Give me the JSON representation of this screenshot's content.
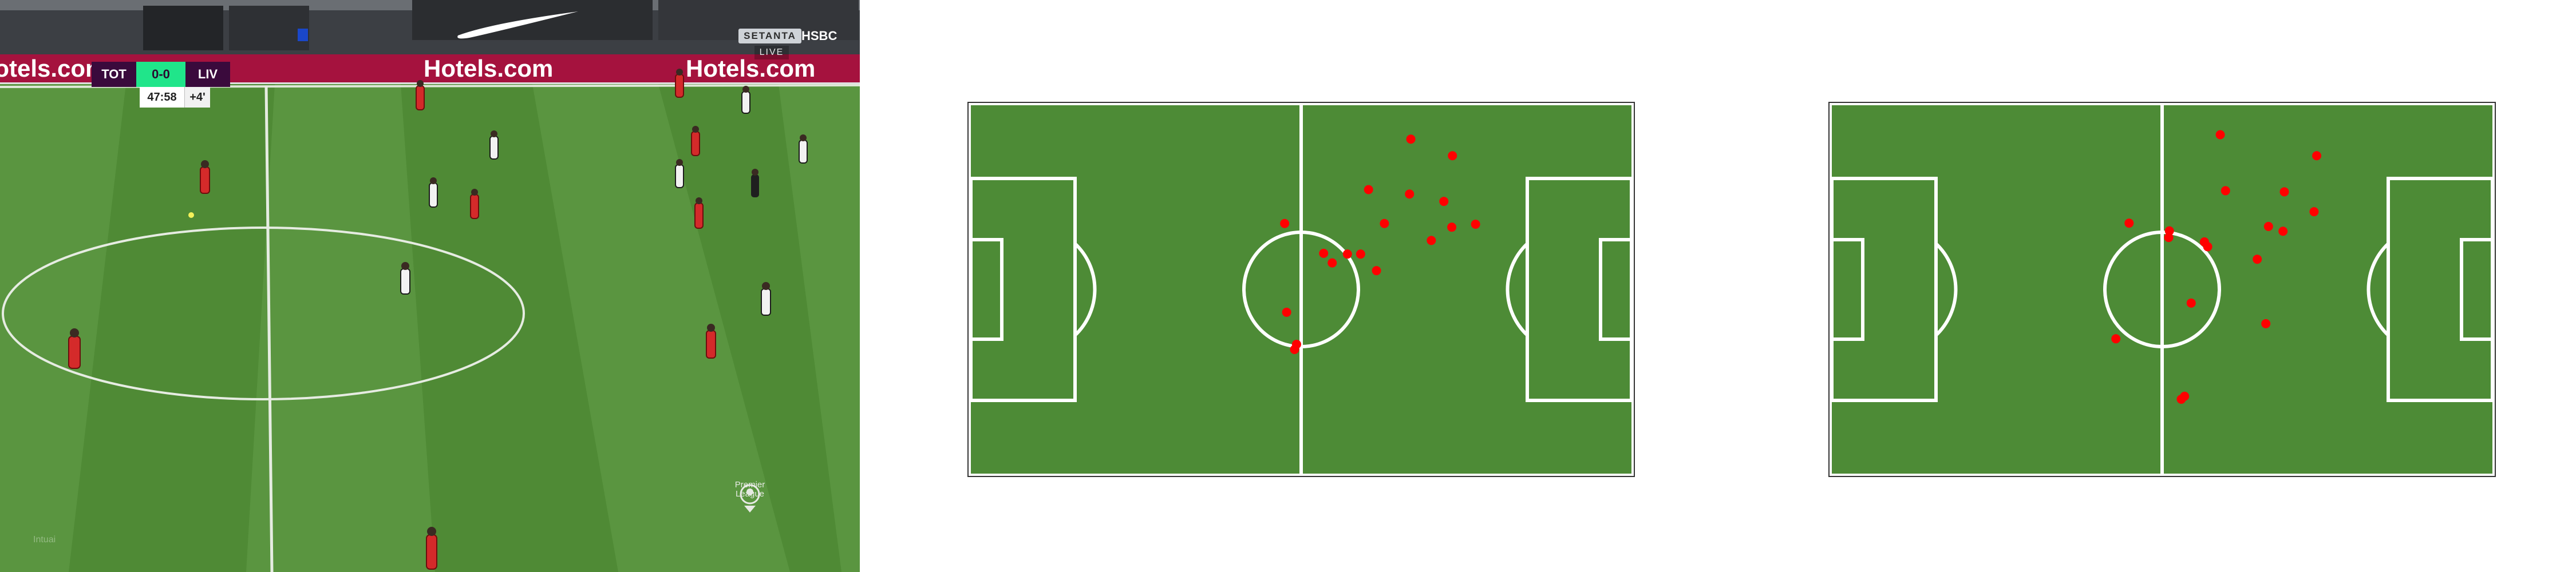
{
  "broadcast": {
    "scorebug": {
      "home": "TOT",
      "score": "0-0",
      "away": "LIV",
      "clock": "47:58",
      "added_time": "+4'"
    },
    "broadcaster": "SETANTA",
    "live_label": "LIVE",
    "ads": {
      "left": "Hotels.com",
      "center": "Hotels.com",
      "right": "Hotels.com",
      "bank": "HSBC"
    },
    "league_logo": [
      "Premier",
      "League"
    ],
    "watermark": "Intuai",
    "colors": {
      "grass": "#4f8a35",
      "grass_light": "#5b9640",
      "ad_board": "#a5123e",
      "home_kit": "#f2f2f2",
      "away_kit": "#d42a2a"
    }
  },
  "tactical_maps": [
    {
      "name": "left-pitch",
      "pitch_color": "#4d8b36",
      "marker_color": "#ff0000",
      "players": [
        {
          "x": 66.6,
          "y": 9.2
        },
        {
          "x": 72.9,
          "y": 13.7
        },
        {
          "x": 60.2,
          "y": 22.9
        },
        {
          "x": 66.4,
          "y": 24.1
        },
        {
          "x": 71.6,
          "y": 26.1
        },
        {
          "x": 62.6,
          "y": 32.1
        },
        {
          "x": 76.4,
          "y": 32.3
        },
        {
          "x": 69.7,
          "y": 36.7
        },
        {
          "x": 57.0,
          "y": 40.4
        },
        {
          "x": 53.4,
          "y": 40.2
        },
        {
          "x": 59.0,
          "y": 40.4
        },
        {
          "x": 54.7,
          "y": 42.8
        },
        {
          "x": 61.4,
          "y": 44.9
        },
        {
          "x": 47.5,
          "y": 32.1
        },
        {
          "x": 72.8,
          "y": 33.1
        },
        {
          "x": 47.8,
          "y": 56.2
        },
        {
          "x": 49.3,
          "y": 64.9
        },
        {
          "x": 49.0,
          "y": 66.3
        }
      ]
    },
    {
      "name": "right-pitch",
      "pitch_color": "#4d8b36",
      "marker_color": "#ff0000",
      "players": [
        {
          "x": 58.8,
          "y": 8.0
        },
        {
          "x": 73.4,
          "y": 13.7
        },
        {
          "x": 59.6,
          "y": 23.2
        },
        {
          "x": 68.5,
          "y": 23.5
        },
        {
          "x": 73.0,
          "y": 28.9
        },
        {
          "x": 66.1,
          "y": 32.9
        },
        {
          "x": 68.3,
          "y": 34.2
        },
        {
          "x": 56.4,
          "y": 37.1
        },
        {
          "x": 56.9,
          "y": 38.4
        },
        {
          "x": 51.1,
          "y": 34.1
        },
        {
          "x": 51.0,
          "y": 35.9
        },
        {
          "x": 45.0,
          "y": 32.0
        },
        {
          "x": 64.4,
          "y": 41.8
        },
        {
          "x": 54.4,
          "y": 53.7
        },
        {
          "x": 43.0,
          "y": 63.4
        },
        {
          "x": 65.7,
          "y": 59.3
        },
        {
          "x": 52.9,
          "y": 79.8
        },
        {
          "x": 53.4,
          "y": 79.0
        }
      ]
    }
  ]
}
